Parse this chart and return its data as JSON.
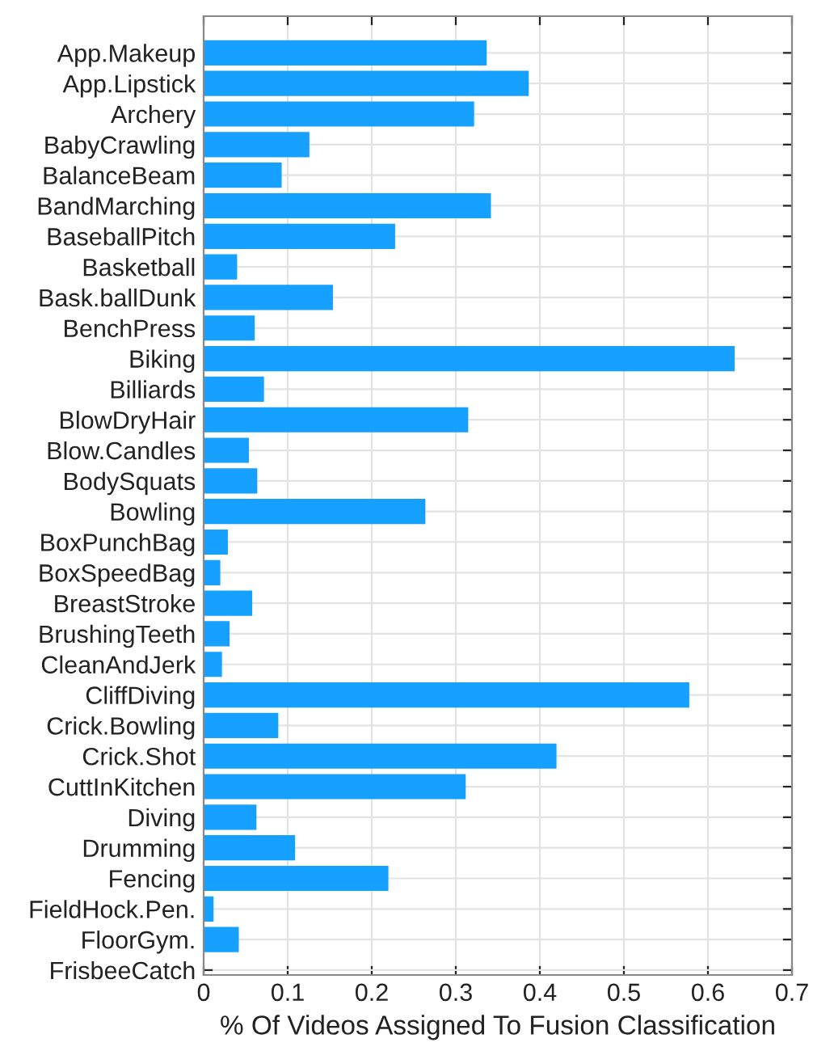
{
  "chart_data": {
    "type": "bar",
    "orientation": "horizontal",
    "xlabel": "% Of Videos Assigned To Fusion Classification",
    "categories": [
      "App.Makeup",
      "App.Lipstick",
      "Archery",
      "BabyCrawling",
      "BalanceBeam",
      "BandMarching",
      "BaseballPitch",
      "Basketball",
      "Bask.ballDunk",
      "BenchPress",
      "Biking",
      "Billiards",
      "BlowDryHair",
      "Blow.Candles",
      "BodySquats",
      "Bowling",
      "BoxPunchBag",
      "BoxSpeedBag",
      "BreastStroke",
      "BrushingTeeth",
      "CleanAndJerk",
      "CliffDiving",
      "Crick.Bowling",
      "Crick.Shot",
      "CuttInKitchen",
      "Diving",
      "Drumming",
      "Fencing",
      "FieldHock.Pen.",
      "FloorGym.",
      "FrisbeeCatch"
    ],
    "values": [
      0.336,
      0.386,
      0.321,
      0.125,
      0.092,
      0.341,
      0.227,
      0.039,
      0.153,
      0.06,
      0.631,
      0.071,
      0.314,
      0.053,
      0.063,
      0.263,
      0.028,
      0.019,
      0.057,
      0.03,
      0.021,
      0.577,
      0.088,
      0.419,
      0.311,
      0.062,
      0.108,
      0.219,
      0.011,
      0.041,
      0
    ],
    "color": "#16a0ff",
    "xlim": [
      0,
      0.7
    ],
    "xticks": [
      0,
      0.1,
      0.2,
      0.3,
      0.4,
      0.5,
      0.6,
      0.7
    ],
    "grid": true
  }
}
